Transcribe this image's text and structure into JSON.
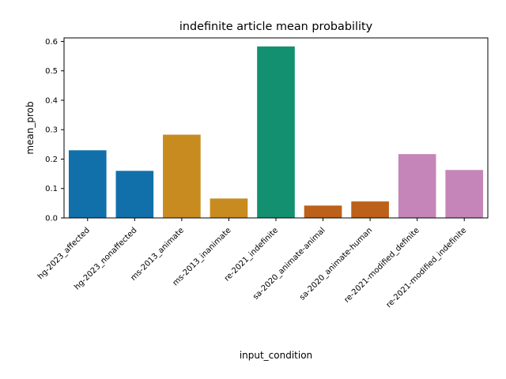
{
  "chart_data": {
    "type": "bar",
    "title": "indefinite article mean probability",
    "xlabel": "input_condition",
    "ylabel": "mean_prob",
    "categories": [
      "hg-2023_affected",
      "hg-2023_nonaffected",
      "ms-2013_animate",
      "ms-2013_inanimate",
      "re-2021_indefinite",
      "sa-2020_animate-animal",
      "sa-2020_animate-human",
      "re-2021-modified_definite",
      "re-2021-modified_indefinite"
    ],
    "values": [
      0.23,
      0.16,
      0.283,
      0.066,
      0.583,
      0.042,
      0.056,
      0.217,
      0.163
    ],
    "colors": [
      "#1170aa",
      "#1170aa",
      "#c88b1f",
      "#c88b1f",
      "#129070",
      "#bd6019",
      "#bd6019",
      "#c585b8",
      "#c585b8"
    ],
    "ylim": [
      0,
      0.612
    ],
    "yticks": [
      0.0,
      0.1,
      0.2,
      0.3,
      0.4,
      0.5,
      0.6
    ],
    "ytick_labels": [
      "0.0",
      "0.1",
      "0.2",
      "0.3",
      "0.4",
      "0.5",
      "0.6"
    ],
    "grid": false
  }
}
